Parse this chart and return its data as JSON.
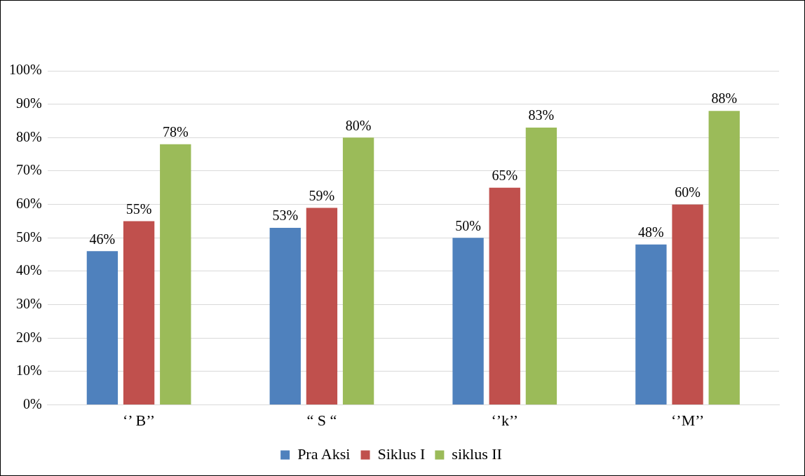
{
  "chart_data": {
    "type": "bar",
    "categories": [
      "‘’ B’’",
      "“ S “",
      "‘’k’’",
      "‘’M’’"
    ],
    "series": [
      {
        "name": "Pra Aksi",
        "color": "#4f81bd",
        "values": [
          46,
          53,
          50,
          48
        ],
        "value_labels": [
          "46%",
          "53%",
          "50%",
          "48%"
        ]
      },
      {
        "name": "Siklus I",
        "color": "#c0504d",
        "values": [
          55,
          59,
          65,
          60
        ],
        "value_labels": [
          "55%",
          "59%",
          "65%",
          "60%"
        ]
      },
      {
        "name": "siklus II",
        "color": "#9bbb59",
        "values": [
          78,
          80,
          83,
          88
        ],
        "value_labels": [
          "78%",
          "80%",
          "83%",
          "88%"
        ]
      }
    ],
    "ylim": [
      0,
      100
    ],
    "yticks": [
      {
        "value": 0,
        "label": "0%"
      },
      {
        "value": 10,
        "label": "10%"
      },
      {
        "value": 20,
        "label": "20%"
      },
      {
        "value": 30,
        "label": "30%"
      },
      {
        "value": 40,
        "label": "40%"
      },
      {
        "value": 50,
        "label": "50%"
      },
      {
        "value": 60,
        "label": "60%"
      },
      {
        "value": 70,
        "label": "70%"
      },
      {
        "value": 80,
        "label": "80%"
      },
      {
        "value": 90,
        "label": "90%"
      },
      {
        "value": 100,
        "label": "100%"
      }
    ],
    "grid": "y",
    "legend": "bottom"
  }
}
